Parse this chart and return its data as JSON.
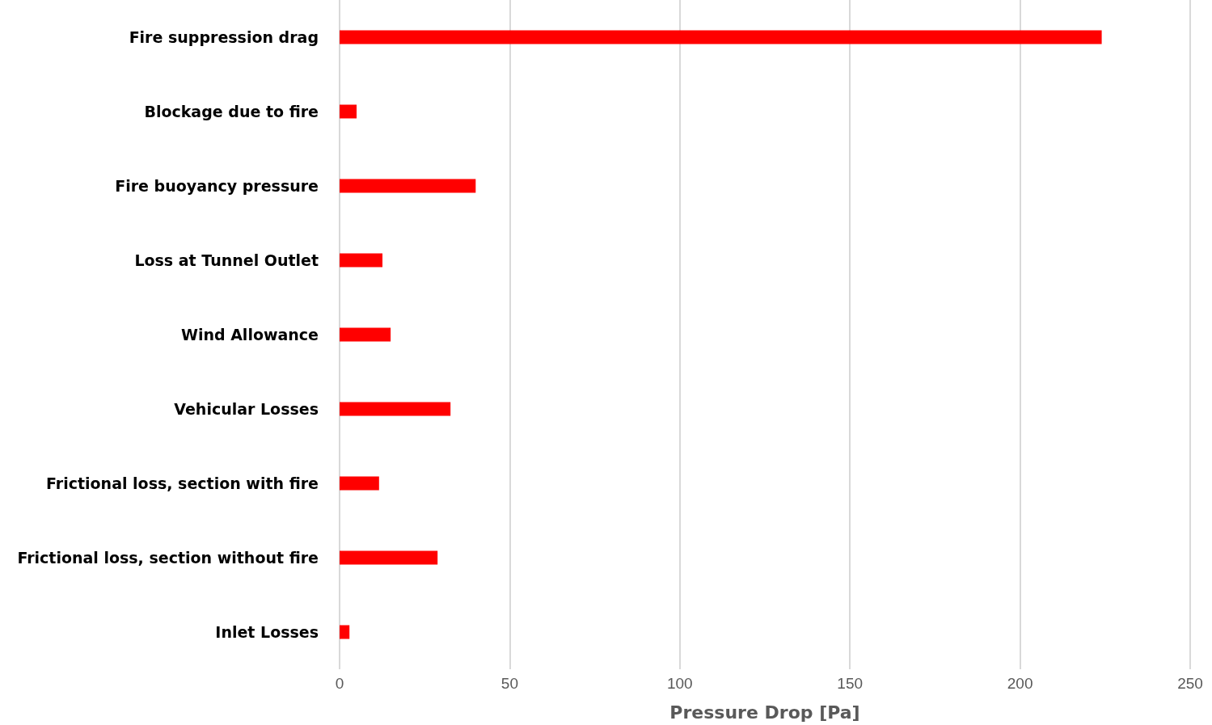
{
  "chart_data": {
    "type": "bar",
    "orientation": "horizontal",
    "xlabel": "Pressure Drop [Pa]",
    "categories": [
      "Fire suppression drag",
      "Blockage due to fire",
      "Fire buoyancy pressure",
      "Loss at Tunnel Outlet",
      "Wind Allowance",
      "Vehicular Losses",
      "Frictional loss, section with fire",
      "Frictional loss, section without fire",
      "Inlet Losses"
    ],
    "values": [
      224,
      5,
      40,
      12.6,
      15,
      32.6,
      11.6,
      28.8,
      2.9
    ],
    "color": "#ff0000",
    "xlim": [
      0,
      250
    ],
    "xticks": [
      0,
      50,
      100,
      150,
      200,
      250
    ],
    "grid": "x"
  }
}
